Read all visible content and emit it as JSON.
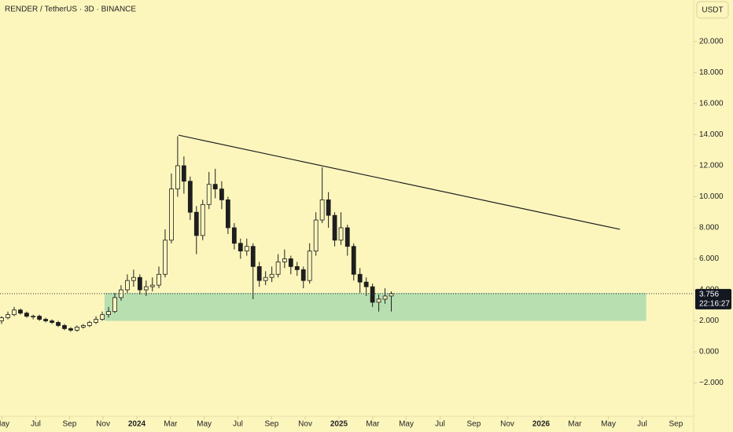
{
  "chart_data": {
    "type": "candlestick",
    "title": "RENDER / TetherUS · 3D · BINANCE",
    "currency": "USDT",
    "countdown": "22:16:27",
    "x": [
      2023.331,
      2023.362,
      2023.393,
      2023.424,
      2023.455,
      2023.487,
      2023.518,
      2023.549,
      2023.58,
      2023.611,
      2023.642,
      2023.673,
      2023.704,
      2023.735,
      2023.766,
      2023.798,
      2023.829,
      2023.86,
      2023.891,
      2023.922,
      2023.953,
      2023.984,
      2024.015,
      2024.046,
      2024.077,
      2024.109,
      2024.14,
      2024.171,
      2024.202,
      2024.233,
      2024.264,
      2024.295,
      2024.326,
      2024.357,
      2024.388,
      2024.42,
      2024.451,
      2024.482,
      2024.513,
      2024.544,
      2024.575,
      2024.606,
      2024.637,
      2024.668,
      2024.699,
      2024.731,
      2024.762,
      2024.793,
      2024.824,
      2024.855,
      2024.886,
      2024.917,
      2024.948,
      2024.979,
      2025.01,
      2025.042,
      2025.073,
      2025.104,
      2025.135,
      2025.166,
      2025.197,
      2025.228,
      2025.259
    ],
    "open": [
      2.0,
      2.2,
      2.4,
      2.7,
      2.5,
      2.3,
      2.3,
      2.1,
      2.0,
      1.9,
      1.7,
      1.5,
      1.4,
      1.6,
      1.7,
      1.9,
      2.1,
      2.4,
      2.6,
      3.5,
      4.0,
      4.6,
      4.8,
      4.0,
      4.2,
      4.3,
      5.0,
      7.2,
      10.5,
      12.0,
      11.0,
      9.0,
      7.5,
      9.5,
      10.8,
      10.5,
      9.8,
      8.0,
      7.0,
      6.5,
      6.8,
      5.5,
      4.6,
      4.8,
      5.0,
      5.8,
      6.0,
      5.5,
      5.3,
      4.6,
      6.5,
      8.5,
      9.8,
      8.8,
      7.2,
      8.0,
      6.8,
      5.0,
      4.5,
      4.2,
      3.2,
      3.4,
      3.6
    ],
    "high": [
      2.3,
      2.6,
      2.9,
      2.8,
      2.6,
      2.4,
      2.4,
      2.2,
      2.1,
      2.0,
      1.8,
      1.6,
      1.7,
      1.8,
      2.0,
      2.3,
      2.6,
      2.9,
      3.8,
      4.3,
      5.0,
      5.3,
      5.0,
      4.6,
      4.8,
      5.5,
      7.9,
      11.5,
      13.9,
      12.6,
      11.3,
      9.4,
      9.8,
      11.6,
      11.8,
      11.0,
      10.0,
      8.3,
      7.3,
      7.3,
      7.0,
      5.8,
      5.2,
      5.5,
      6.3,
      6.6,
      6.2,
      5.8,
      5.5,
      7.0,
      9.0,
      11.9,
      10.3,
      9.0,
      9.0,
      8.2,
      7.0,
      5.4,
      4.8,
      4.4,
      3.7,
      4.1,
      3.9
    ],
    "low": [
      1.8,
      2.1,
      2.3,
      2.4,
      2.2,
      2.1,
      2.0,
      1.9,
      1.8,
      1.6,
      1.4,
      1.3,
      1.3,
      1.5,
      1.6,
      1.8,
      2.0,
      2.2,
      2.5,
      3.3,
      3.8,
      4.2,
      3.7,
      3.6,
      3.9,
      4.1,
      4.8,
      7.0,
      10.0,
      10.2,
      8.5,
      6.3,
      7.2,
      9.2,
      9.9,
      9.2,
      7.6,
      6.6,
      6.0,
      6.2,
      3.4,
      4.2,
      4.3,
      4.5,
      4.8,
      5.4,
      5.0,
      4.9,
      4.1,
      4.4,
      6.2,
      8.3,
      8.0,
      6.8,
      6.9,
      6.2,
      4.6,
      3.8,
      3.6,
      2.9,
      2.6,
      3.1,
      2.6
    ],
    "close": [
      2.2,
      2.4,
      2.7,
      2.5,
      2.3,
      2.3,
      2.1,
      2.0,
      1.9,
      1.7,
      1.5,
      1.4,
      1.6,
      1.7,
      1.9,
      2.1,
      2.4,
      2.6,
      3.5,
      4.0,
      4.6,
      4.8,
      4.0,
      4.2,
      4.3,
      5.0,
      7.2,
      10.5,
      12.0,
      11.0,
      9.0,
      7.5,
      9.5,
      10.8,
      10.5,
      9.8,
      8.0,
      7.0,
      6.5,
      6.8,
      5.5,
      4.6,
      4.8,
      5.0,
      5.8,
      6.0,
      5.5,
      5.3,
      4.6,
      6.5,
      8.5,
      9.8,
      8.8,
      7.2,
      8.0,
      6.8,
      5.0,
      4.5,
      4.2,
      3.2,
      3.4,
      3.6,
      3.756
    ],
    "up_color": "#fcf6bd",
    "down_color": "#1e1e1e",
    "wick_color": "#1e1e1e",
    "xlim": [
      2023.323,
      2026.755
    ],
    "xticks": [
      {
        "value": 2023.333,
        "label": "May"
      },
      {
        "value": 2023.5,
        "label": "Jul"
      },
      {
        "value": 2023.667,
        "label": "Sep"
      },
      {
        "value": 2023.833,
        "label": "Nov"
      },
      {
        "value": 2024.0,
        "label": "2024"
      },
      {
        "value": 2024.167,
        "label": "Mar"
      },
      {
        "value": 2024.333,
        "label": "May"
      },
      {
        "value": 2024.5,
        "label": "Jul"
      },
      {
        "value": 2024.667,
        "label": "Sep"
      },
      {
        "value": 2024.833,
        "label": "Nov"
      },
      {
        "value": 2025.0,
        "label": "2025"
      },
      {
        "value": 2025.167,
        "label": "Mar"
      },
      {
        "value": 2025.333,
        "label": "May"
      },
      {
        "value": 2025.5,
        "label": "Jul"
      },
      {
        "value": 2025.667,
        "label": "Sep"
      },
      {
        "value": 2025.833,
        "label": "Nov"
      },
      {
        "value": 2026.0,
        "label": "2026"
      },
      {
        "value": 2026.167,
        "label": "Mar"
      },
      {
        "value": 2026.333,
        "label": "May"
      },
      {
        "value": 2026.5,
        "label": "Jul"
      },
      {
        "value": 2026.667,
        "label": "Sep"
      }
    ],
    "ylim": [
      -4.15,
      22.68
    ],
    "yticks": [
      {
        "value": -2,
        "label": "−2.000"
      },
      {
        "value": 0,
        "label": "0.000"
      },
      {
        "value": 2,
        "label": "2.000"
      },
      {
        "value": 4,
        "label": "4.000"
      },
      {
        "value": 6,
        "label": "6.000"
      },
      {
        "value": 8,
        "label": "8.000"
      },
      {
        "value": 10,
        "label": "10.000"
      },
      {
        "value": 12,
        "label": "12.000"
      },
      {
        "value": 14,
        "label": "14.000"
      },
      {
        "value": 16,
        "label": "16.000"
      },
      {
        "value": 18,
        "label": "18.000"
      },
      {
        "value": 20,
        "label": "20.000"
      }
    ],
    "zone": {
      "x": [
        2023.84,
        2026.52
      ],
      "y": [
        2.0,
        3.8
      ],
      "color": "#b8dfb0"
    },
    "trendline": {
      "x": [
        2024.206,
        2026.39
      ],
      "y": [
        13.97,
        7.9
      ],
      "color": "#1e1e1e"
    }
  }
}
